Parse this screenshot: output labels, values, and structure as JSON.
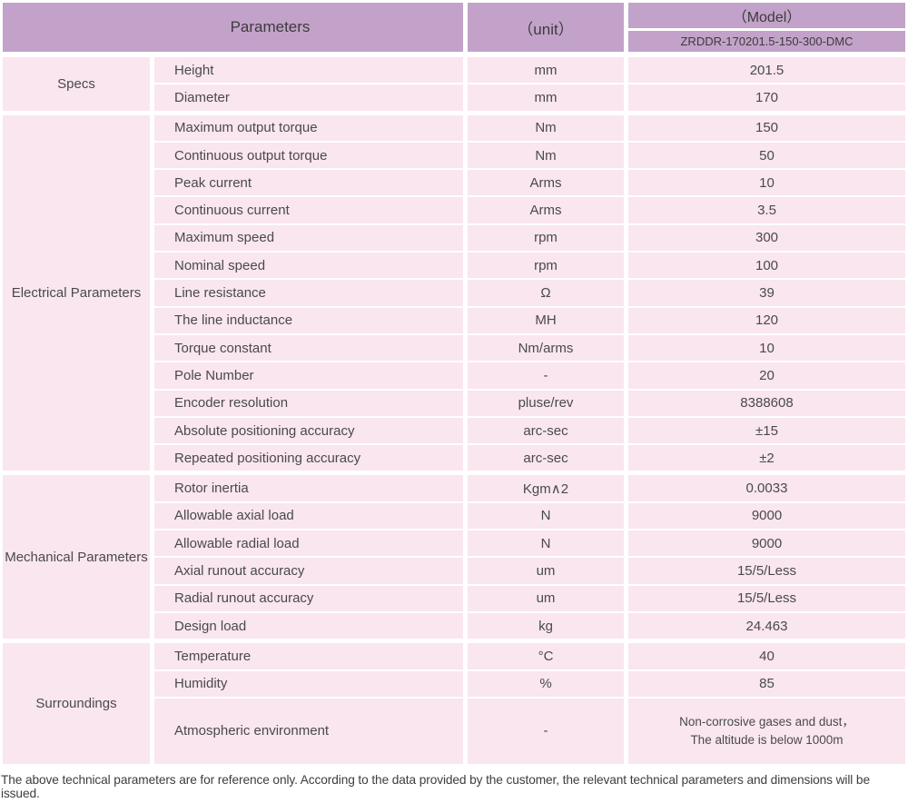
{
  "colors": {
    "header_bg": "#c3a2c9",
    "row_bg": "#f9e6ef",
    "text": "#4a4a4a"
  },
  "table": {
    "header": {
      "parameters": "Parameters",
      "unit": "（unit）",
      "model_label": "（Model）",
      "model_code": "ZRDDR-170201.5-150-300-DMC"
    },
    "groups": [
      {
        "name": "Specs",
        "rows": [
          {
            "param": "Height",
            "unit": "mm",
            "value": "201.5"
          },
          {
            "param": "Diameter",
            "unit": "mm",
            "value": "170"
          }
        ]
      },
      {
        "name": "Electrical Parameters",
        "rows": [
          {
            "param": "Maximum output torque",
            "unit": "Nm",
            "value": "150"
          },
          {
            "param": "Continuous output torque",
            "unit": "Nm",
            "value": "50"
          },
          {
            "param": "Peak current",
            "unit": "Arms",
            "value": "10"
          },
          {
            "param": "Continuous current",
            "unit": "Arms",
            "value": "3.5"
          },
          {
            "param": "Maximum speed",
            "unit": "rpm",
            "value": "300"
          },
          {
            "param": "Nominal speed",
            "unit": "rpm",
            "value": "100"
          },
          {
            "param": "Line resistance",
            "unit": "Ω",
            "value": "39"
          },
          {
            "param": "The line inductance",
            "unit": "MH",
            "value": "120"
          },
          {
            "param": "Torque constant",
            "unit": "Nm/arms",
            "value": "10"
          },
          {
            "param": "Pole Number",
            "unit": "-",
            "value": "20"
          },
          {
            "param": "Encoder resolution",
            "unit": "pluse/rev",
            "value": "8388608"
          },
          {
            "param": "Absolute positioning accuracy",
            "unit": "arc-sec",
            "value": "±15"
          },
          {
            "param": "Repeated positioning accuracy",
            "unit": "arc-sec",
            "value": "±2"
          }
        ]
      },
      {
        "name": "Mechanical Parameters",
        "rows": [
          {
            "param": "Rotor inertia",
            "unit": "Kgm∧2",
            "value": "0.0033"
          },
          {
            "param": "Allowable axial load",
            "unit": "N",
            "value": "9000"
          },
          {
            "param": "Allowable radial load",
            "unit": "N",
            "value": "9000"
          },
          {
            "param": "Axial runout accuracy",
            "unit": "um",
            "value": "15/5/Less"
          },
          {
            "param": "Radial runout accuracy",
            "unit": "um",
            "value": "15/5/Less"
          },
          {
            "param": "Design load",
            "unit": "kg",
            "value": "24.463"
          }
        ]
      },
      {
        "name": "Surroundings",
        "rows": [
          {
            "param": "Temperature",
            "unit": "°C",
            "value": "40"
          },
          {
            "param": "Humidity",
            "unit": "%",
            "value": "85"
          },
          {
            "param": "Atmospheric environment",
            "unit": "-",
            "value": "Non-corrosive gases and dust，\nThe altitude is below 1000m",
            "tall": true
          }
        ]
      }
    ]
  },
  "footer": {
    "note": "The above technical parameters are for reference only. According to the data provided by the customer, the relevant technical parameters and dimensions will be issued."
  }
}
